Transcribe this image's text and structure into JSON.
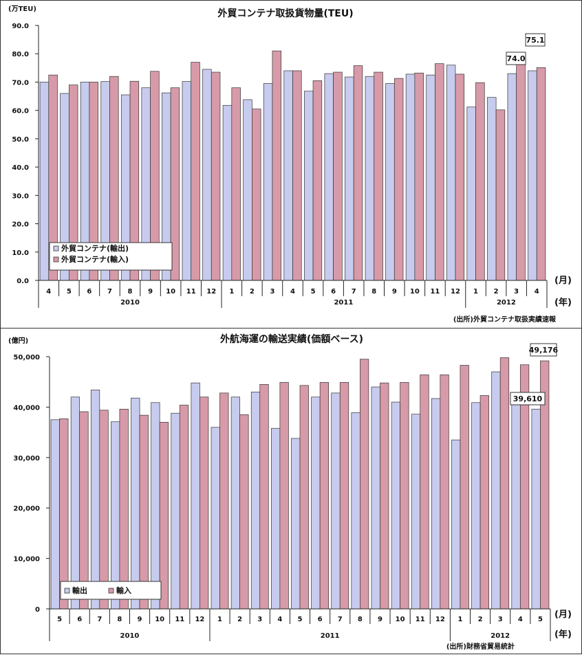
{
  "colors": {
    "export": "#c7cbee",
    "import": "#d79aa8",
    "bar_stroke": "#333333"
  },
  "chart_data": [
    {
      "type": "bar",
      "title": "外貿コンテナ取扱貨物量(TEU)",
      "unit": "(万TEU)",
      "ylim": [
        0,
        90
      ],
      "yticks": [
        "0.0",
        "10.0",
        "20.0",
        "30.0",
        "40.0",
        "50.0",
        "60.0",
        "70.0",
        "80.0",
        "90.0"
      ],
      "categories": [
        "4",
        "5",
        "6",
        "7",
        "8",
        "9",
        "10",
        "11",
        "12",
        "1",
        "2",
        "3",
        "4",
        "5",
        "6",
        "7",
        "8",
        "9",
        "10",
        "11",
        "12",
        "1",
        "2",
        "3",
        "4"
      ],
      "years": [
        {
          "label": "2010",
          "count": 9
        },
        {
          "label": "2011",
          "count": 12
        },
        {
          "label": "2012",
          "count": 4
        }
      ],
      "x_unit_month": "(月)",
      "x_unit_year": "(年)",
      "series": [
        {
          "name": "外貿コンテナ(輸出)",
          "values": [
            70.0,
            66.0,
            70.0,
            70.2,
            65.5,
            68.0,
            66.2,
            70.2,
            74.5,
            61.8,
            63.8,
            69.5,
            74.0,
            66.8,
            73.0,
            71.8,
            72.0,
            69.5,
            72.8,
            72.5,
            76.0,
            61.2,
            64.6,
            73.0,
            74.0
          ]
        },
        {
          "name": "外貿コンテナ(輸入)",
          "values": [
            72.5,
            69.0,
            70.0,
            72.0,
            70.3,
            73.8,
            68.0,
            77.0,
            73.5,
            68.0,
            60.5,
            81.0,
            74.0,
            70.5,
            73.5,
            75.8,
            73.5,
            71.3,
            73.2,
            76.5,
            72.8,
            69.8,
            60.2,
            79.0,
            75.1
          ]
        }
      ],
      "callouts": [
        {
          "text": "75.1",
          "series": 1,
          "index": 24
        },
        {
          "text": "74.0",
          "series": 0,
          "index": 24
        }
      ],
      "legend": "bottom-left",
      "source": "(出所)外貿コンテナ取扱実績速報"
    },
    {
      "type": "bar",
      "title": "外航海運の輸送実績(価額ベース)",
      "unit": "(億円)",
      "ylim": [
        0,
        50000
      ],
      "yticks": [
        "0",
        "10,000",
        "20,000",
        "30,000",
        "40,000",
        "50,000"
      ],
      "categories": [
        "5",
        "6",
        "7",
        "8",
        "9",
        "10",
        "11",
        "12",
        "1",
        "2",
        "3",
        "4",
        "5",
        "6",
        "7",
        "8",
        "9",
        "10",
        "11",
        "12",
        "1",
        "2",
        "3",
        "4",
        "5"
      ],
      "years": [
        {
          "label": "2010",
          "count": 8
        },
        {
          "label": "2011",
          "count": 12
        },
        {
          "label": "2012",
          "count": 5
        }
      ],
      "x_unit_month": "(月)",
      "x_unit_year": "(年)",
      "series": [
        {
          "name": "輸出",
          "values": [
            37500,
            42000,
            43400,
            37100,
            41800,
            40900,
            38800,
            44800,
            36000,
            42000,
            43000,
            35800,
            33800,
            42000,
            42800,
            38900,
            44000,
            41000,
            38600,
            41700,
            33500,
            40900,
            47000,
            42000,
            39610
          ]
        },
        {
          "name": "輸入",
          "values": [
            37700,
            39100,
            39400,
            39600,
            38400,
            37000,
            40400,
            42000,
            42800,
            38500,
            44500,
            44900,
            44300,
            44900,
            44900,
            49500,
            44800,
            44900,
            46400,
            46400,
            48300,
            42300,
            49800,
            48400,
            49176
          ]
        }
      ],
      "callouts": [
        {
          "text": "49,176",
          "series": 1,
          "index": 24
        },
        {
          "text": "39,610",
          "series": 0,
          "index": 24
        }
      ],
      "legend": "bottom-left",
      "source": "(出所)財務省貿易統計"
    }
  ]
}
